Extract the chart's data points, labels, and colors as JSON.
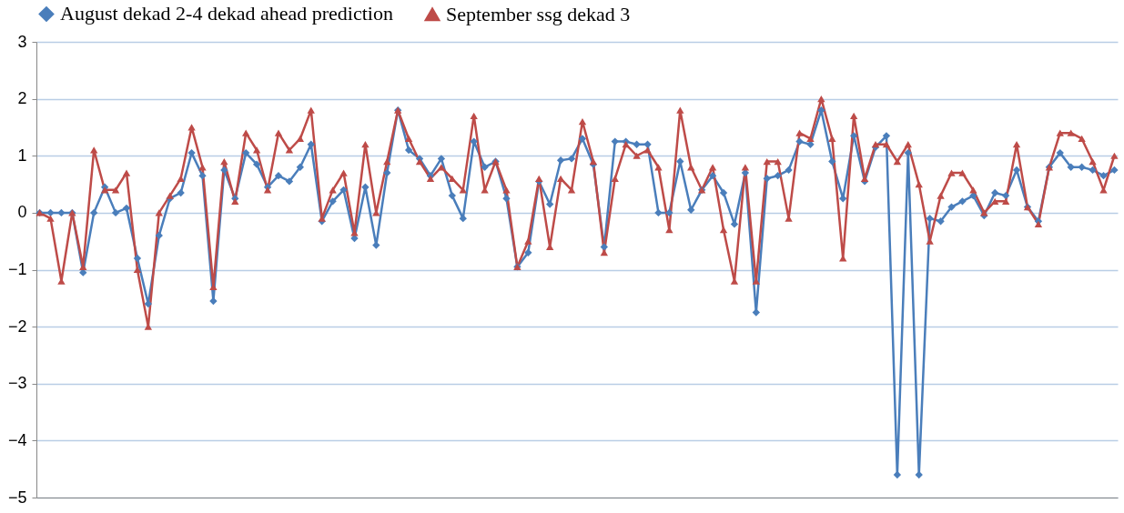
{
  "chart_data": {
    "type": "line",
    "categories": [
      null,
      null,
      null,
      null,
      null,
      null,
      null,
      null,
      null,
      null,
      null,
      null,
      null,
      null,
      null,
      null,
      null,
      null,
      null,
      null,
      null,
      null,
      null,
      null,
      null,
      null,
      null,
      null,
      null,
      null,
      null,
      null,
      null,
      null,
      null,
      null,
      null,
      null,
      null,
      null,
      null,
      null,
      null,
      null,
      null,
      null,
      null,
      null,
      null,
      null,
      null,
      null,
      null,
      null,
      null,
      null,
      null,
      null,
      null,
      null,
      null,
      null,
      null,
      null,
      null,
      null,
      null,
      null,
      null,
      null,
      null,
      null,
      null,
      null,
      null,
      null,
      null,
      null,
      null,
      null,
      null,
      null,
      null,
      null,
      null,
      null,
      null,
      null,
      null,
      null,
      null,
      null,
      null,
      null,
      null,
      null,
      null,
      null,
      null,
      null
    ],
    "series": [
      {
        "name": "August dekad 2-4 dekad ahead prediction",
        "color": "#4a7ebb",
        "marker": "diamond",
        "values": [
          0,
          0,
          0,
          0,
          -1.05,
          0,
          0.45,
          0,
          0.08,
          -0.8,
          -1.6,
          -0.4,
          0.25,
          0.35,
          1.05,
          0.65,
          -1.55,
          0.75,
          0.25,
          1.05,
          0.85,
          0.45,
          0.65,
          0.55,
          0.8,
          1.2,
          -0.15,
          0.2,
          0.4,
          -0.45,
          0.45,
          -0.57,
          0.7,
          1.8,
          1.1,
          0.95,
          0.65,
          0.95,
          0.3,
          -0.1,
          1.25,
          0.8,
          0.9,
          0.25,
          -0.95,
          -0.7,
          0.55,
          0.15,
          0.92,
          0.95,
          1.3,
          0.85,
          -0.6,
          1.25,
          1.25,
          1.2,
          1.2,
          0,
          0,
          0.9,
          0.05,
          0.4,
          0.65,
          0.35,
          -0.2,
          0.7,
          -1.75,
          0.6,
          0.65,
          0.75,
          1.25,
          1.2,
          1.8,
          0.9,
          0.25,
          1.35,
          0.55,
          1.15,
          1.35,
          -4.6,
          1.05,
          -4.6,
          -0.1,
          -0.15,
          0.1,
          0.2,
          0.3,
          -0.05,
          0.35,
          0.3,
          0.75,
          0.1,
          -0.15,
          0.8,
          1.05,
          0.8,
          0.8,
          0.75,
          0.65,
          0.75
        ]
      },
      {
        "name": "September ssg dekad 3",
        "color": "#be4b48",
        "marker": "triangle",
        "values": [
          0,
          -0.1,
          -1.2,
          0,
          -0.95,
          1.1,
          0.4,
          0.4,
          0.7,
          -1.0,
          -2.0,
          0,
          0.3,
          0.6,
          1.5,
          0.8,
          -1.3,
          0.9,
          0.2,
          1.4,
          1.1,
          0.4,
          1.4,
          1.1,
          1.3,
          1.8,
          -0.1,
          0.4,
          0.7,
          -0.35,
          1.2,
          0,
          0.9,
          1.8,
          1.3,
          0.9,
          0.6,
          0.8,
          0.6,
          0.4,
          1.7,
          0.4,
          0.9,
          0.4,
          -0.95,
          -0.5,
          0.6,
          -0.6,
          0.6,
          0.4,
          1.6,
          0.9,
          -0.7,
          0.6,
          1.2,
          1.0,
          1.1,
          0.8,
          -0.3,
          1.8,
          0.8,
          0.4,
          0.8,
          -0.3,
          -1.2,
          0.8,
          -1.2,
          0.9,
          0.9,
          -0.1,
          1.4,
          1.3,
          2.0,
          1.3,
          -0.8,
          1.7,
          0.6,
          1.2,
          1.2,
          0.9,
          1.2,
          0.5,
          -0.5,
          0.3,
          0.7,
          0.7,
          0.4,
          0,
          0.2,
          0.2,
          1.2,
          0.1,
          -0.2,
          0.8,
          1.4,
          1.4,
          1.3,
          0.9,
          0.4,
          1.0
        ]
      }
    ],
    "ylim": [
      -5,
      3
    ],
    "yticks": [
      -5,
      -4,
      -3,
      -2,
      -1,
      0,
      1,
      2,
      3
    ],
    "grid": "y",
    "legend": "top",
    "tick_labels": "y"
  }
}
